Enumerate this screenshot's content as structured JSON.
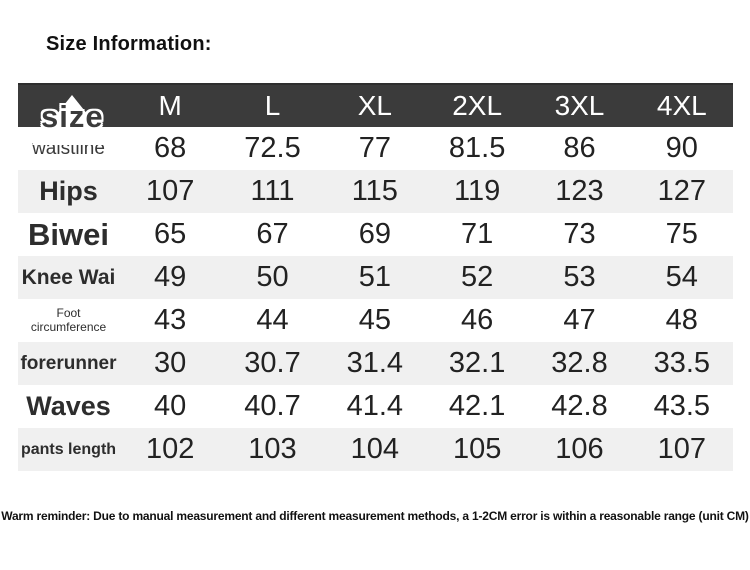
{
  "page": {
    "title": "Size Information:",
    "reminder": "Warm reminder: Due to manual measurement and different measurement methods, a 1-2CM error is within a reasonable range (unit CM)"
  },
  "colors": {
    "header_bg": "#3b3b3b",
    "header_text": "#ffffff",
    "row_alt_bg": "#f0f0f0",
    "text": "#222222",
    "background": "#ffffff"
  },
  "chart_data": {
    "type": "table",
    "title": "Size Information:",
    "unit": "CM",
    "header": [
      "size",
      "M",
      "L",
      "XL",
      "2XL",
      "3XL",
      "4XL"
    ],
    "rows": [
      {
        "label": "waistline",
        "values": [
          68,
          72.5,
          77,
          81.5,
          86,
          90
        ]
      },
      {
        "label": "Hips",
        "values": [
          107,
          111,
          115,
          119,
          123,
          127
        ]
      },
      {
        "label": "Biwei",
        "values": [
          65,
          67,
          69,
          71,
          73,
          75
        ]
      },
      {
        "label": "Knee Wai",
        "values": [
          49,
          50,
          51,
          52,
          53,
          54
        ]
      },
      {
        "label": "Foot circumference",
        "values": [
          43,
          44,
          45,
          46,
          47,
          48
        ]
      },
      {
        "label": "forerunner",
        "values": [
          30,
          30.7,
          31.4,
          32.1,
          32.8,
          33.5
        ]
      },
      {
        "label": "Waves",
        "values": [
          40,
          40.7,
          41.4,
          42.1,
          42.8,
          43.5
        ]
      },
      {
        "label": "pants length",
        "values": [
          102,
          103,
          104,
          105,
          106,
          107
        ]
      }
    ]
  }
}
